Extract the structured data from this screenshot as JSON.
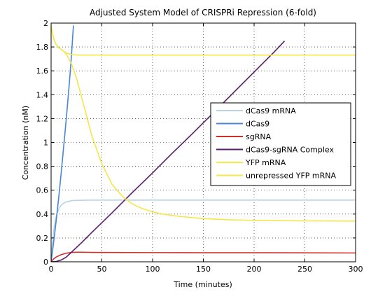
{
  "chart_data": {
    "type": "line",
    "title": "Adjusted System Model of CRISPRi Repression (6-fold)",
    "xlabel": "Time (minutes)",
    "ylabel": "Concentration (nM)",
    "xlim": [
      0,
      300
    ],
    "ylim": [
      0,
      2
    ],
    "xticks": [
      0,
      50,
      100,
      150,
      200,
      250,
      300
    ],
    "yticks": [
      0,
      0.2,
      0.4,
      0.6,
      0.8,
      1,
      1.2,
      1.4,
      1.6,
      1.8,
      2
    ],
    "grid": true,
    "legend_position": "right",
    "series": [
      {
        "name": "dCas9 mRNA",
        "color": "#b8d2e6",
        "x": [
          0,
          1,
          2,
          3,
          4,
          5,
          6,
          8,
          10,
          12,
          15,
          20,
          25,
          30,
          40,
          60,
          100,
          150,
          200,
          250,
          300
        ],
        "y": [
          0,
          0.12,
          0.22,
          0.29,
          0.34,
          0.38,
          0.41,
          0.45,
          0.475,
          0.49,
          0.502,
          0.512,
          0.515,
          0.516,
          0.517,
          0.517,
          0.517,
          0.517,
          0.517,
          0.517,
          0.517
        ]
      },
      {
        "name": "dCas9",
        "color": "#4a86d8",
        "x": [
          0,
          2,
          4,
          6,
          8,
          10,
          12,
          14,
          16,
          18,
          20,
          22
        ],
        "y": [
          0,
          0.13,
          0.27,
          0.42,
          0.58,
          0.75,
          0.93,
          1.11,
          1.3,
          1.5,
          1.72,
          1.98
        ]
      },
      {
        "name": "sgRNA",
        "color": "#d0302c",
        "x": [
          0,
          2,
          5,
          10,
          15,
          20,
          25,
          30,
          40,
          60,
          100,
          150,
          200,
          250,
          300
        ],
        "y": [
          0,
          0.02,
          0.04,
          0.06,
          0.072,
          0.078,
          0.08,
          0.08,
          0.079,
          0.078,
          0.077,
          0.076,
          0.076,
          0.075,
          0.074
        ]
      },
      {
        "name": "dCas9-sgRNA Complex",
        "color": "#5a1e6e",
        "x": [
          0,
          5,
          10,
          15,
          20,
          30,
          40,
          60,
          80,
          100,
          120,
          140,
          160,
          180,
          200,
          220,
          230
        ],
        "y": [
          0,
          0.003,
          0.015,
          0.04,
          0.08,
          0.16,
          0.245,
          0.41,
          0.58,
          0.745,
          0.915,
          1.08,
          1.25,
          1.42,
          1.59,
          1.76,
          1.85
        ]
      },
      {
        "name": "YFP mRNA",
        "color": "#f5e64a",
        "x": [
          0,
          1,
          2,
          3,
          5,
          7,
          10,
          13,
          15,
          20,
          25,
          30,
          35,
          40,
          50,
          60,
          70,
          80,
          90,
          100,
          110,
          125,
          150,
          175,
          200,
          250,
          300
        ],
        "y": [
          1.98,
          1.93,
          1.89,
          1.86,
          1.82,
          1.8,
          1.78,
          1.76,
          1.74,
          1.66,
          1.54,
          1.38,
          1.22,
          1.06,
          0.82,
          0.65,
          0.55,
          0.485,
          0.445,
          0.418,
          0.4,
          0.382,
          0.362,
          0.352,
          0.347,
          0.343,
          0.341
        ]
      },
      {
        "name": "unrepressed YFP mRNA",
        "color": "#f5e64a",
        "x": [
          0,
          1,
          2,
          3,
          5,
          7,
          10,
          13,
          15,
          20,
          25,
          30,
          50,
          100,
          150,
          200,
          250,
          300
        ],
        "y": [
          1.98,
          1.93,
          1.89,
          1.86,
          1.82,
          1.8,
          1.78,
          1.76,
          1.75,
          1.737,
          1.733,
          1.732,
          1.732,
          1.732,
          1.732,
          1.732,
          1.732,
          1.732
        ]
      }
    ]
  }
}
